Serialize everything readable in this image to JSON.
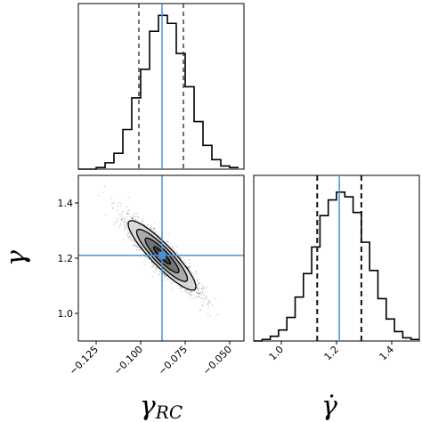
{
  "chart_data": {
    "type": "corner",
    "parameters": [
      {
        "label": "γ",
        "sub": "RC",
        "range": [
          -0.135,
          -0.042
        ],
        "truth": -0.088,
        "quantiles": [
          -0.101,
          -0.076
        ],
        "ticks": [
          -0.125,
          -0.1,
          -0.075,
          -0.05
        ],
        "tick_labels": [
          "−0.125",
          "−0.100",
          "−0.075",
          "−0.050"
        ]
      },
      {
        "label": "γ̇",
        "sub": "",
        "range": [
          0.9,
          1.5
        ],
        "truth": 1.21,
        "quantiles": [
          1.13,
          1.29
        ],
        "ticks": [
          1.0,
          1.2,
          1.4
        ],
        "tick_labels": [
          "1.0",
          "1.2",
          "1.4"
        ]
      }
    ],
    "y_axis_label": "γ",
    "hist_gamma_rc": {
      "bin_edges": [
        -0.135,
        -0.13,
        -0.125,
        -0.12,
        -0.115,
        -0.11,
        -0.105,
        -0.1,
        -0.095,
        -0.09,
        -0.085,
        -0.08,
        -0.075,
        -0.07,
        -0.065,
        -0.06,
        -0.055,
        -0.05,
        -0.045
      ],
      "counts": [
        0,
        0,
        0.01,
        0.04,
        0.1,
        0.25,
        0.45,
        0.63,
        0.87,
        0.97,
        0.92,
        0.73,
        0.52,
        0.3,
        0.15,
        0.06,
        0.02,
        0.01
      ]
    },
    "hist_gamma": {
      "bin_edges": [
        0.9,
        0.93,
        0.96,
        0.99,
        1.02,
        1.05,
        1.08,
        1.11,
        1.14,
        1.17,
        1.2,
        1.23,
        1.26,
        1.29,
        1.32,
        1.35,
        1.38,
        1.41,
        1.44,
        1.47,
        1.5
      ],
      "counts": [
        0,
        0.01,
        0.03,
        0.07,
        0.15,
        0.28,
        0.43,
        0.6,
        0.8,
        0.9,
        0.95,
        0.92,
        0.82,
        0.63,
        0.45,
        0.27,
        0.14,
        0.06,
        0.02,
        0.01
      ]
    },
    "joint": {
      "center": [
        -0.088,
        1.21
      ],
      "sd": [
        0.0095,
        0.063
      ],
      "correlation": -0.9,
      "levels_sigma": [
        0.5,
        1.0,
        1.5,
        2.0
      ]
    },
    "colors": {
      "truth": "#4a90d9",
      "hist": "#000000",
      "quantile": "#333333",
      "frame": "#000000"
    }
  }
}
